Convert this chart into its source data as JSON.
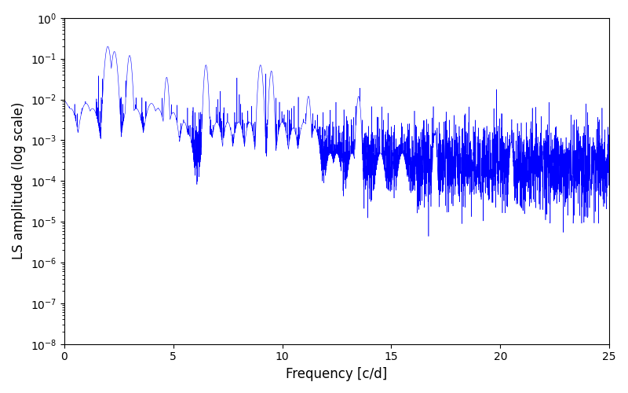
{
  "xlabel": "Frequency [c/d]",
  "ylabel": "LS amplitude (log scale)",
  "line_color": "#0000ff",
  "xlim": [
    0,
    25
  ],
  "ylim": [
    1e-08,
    1.0
  ],
  "figsize": [
    8.0,
    5.0
  ],
  "dpi": 100,
  "background_color": "#ffffff",
  "peak_freqs": [
    2.0,
    2.3,
    3.0,
    4.7,
    6.5,
    9.0,
    9.5,
    11.2,
    13.5,
    17.0,
    20.5
  ],
  "peak_amps": [
    0.2,
    0.15,
    0.12,
    0.035,
    0.07,
    0.07,
    0.05,
    0.012,
    0.012,
    0.0015,
    0.0009
  ],
  "peak_widths": [
    0.1,
    0.1,
    0.08,
    0.07,
    0.07,
    0.08,
    0.07,
    0.07,
    0.07,
    0.06,
    0.06
  ],
  "n_points": 5000,
  "freq_max": 25.0,
  "noise_seed": 7
}
